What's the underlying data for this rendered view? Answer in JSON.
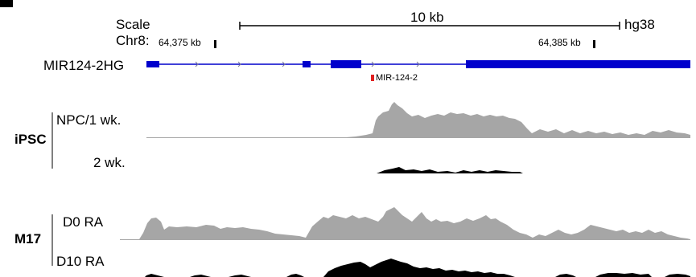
{
  "scale": {
    "label": "Scale",
    "bar_label": "10 kb",
    "assembly": "hg38"
  },
  "coords": {
    "chrom_label": "Chr8:",
    "left_pos": "64,375 kb",
    "right_pos": "64,385 kb"
  },
  "gene": {
    "name": "MIR124-2HG",
    "mirna": "MIR-124-2",
    "gene_color": "#0000cc",
    "mirna_color": "#e02020"
  },
  "groups": [
    {
      "name": "iPSC",
      "tracks": [
        {
          "label": "NPC/1 wk.",
          "color": "#a6a6a6"
        },
        {
          "label": "2 wk.",
          "color": "#000000"
        }
      ]
    },
    {
      "name": "M17",
      "tracks": [
        {
          "label": "D0 RA",
          "color": "#a6a6a6"
        },
        {
          "label": "D10 RA",
          "color": "#000000"
        }
      ]
    }
  ]
}
